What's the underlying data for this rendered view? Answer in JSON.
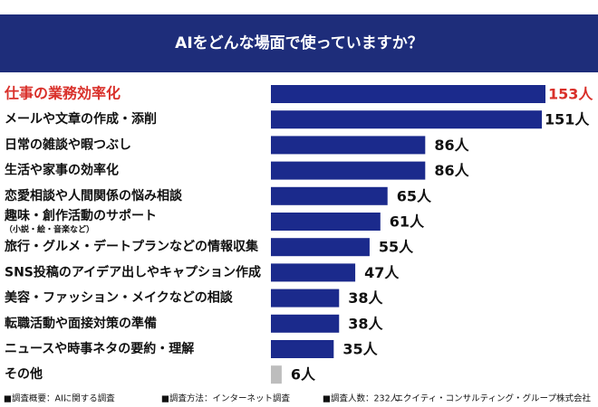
{
  "chart_data": {
    "type": "barh",
    "title": "AIをどんな場面で使っていますか？",
    "categories": [
      "仕事の業務効率化",
      "メールや文章の作成・添削",
      "日常の雑談や暇つぶし",
      "生活や家事の効率化",
      "恋愛相談や人間関係の悩み相談",
      "趣味・創作活動のサポート",
      "旅行・グルメ・デートプランなどの情報収集",
      "SNS投稿のアイデア出しやキャプション作成",
      "美容・ファッション・メイクなどの相談",
      "転職活動や面接対策の準備",
      "ニュースや時事ネタの要約・理解",
      "その他"
    ],
    "category_sublabels": [
      null,
      null,
      null,
      null,
      null,
      "（小説・絵・音楽など）",
      null,
      null,
      null,
      null,
      null,
      null
    ],
    "values": [
      153,
      151,
      86,
      86,
      65,
      61,
      55,
      47,
      38,
      38,
      35,
      6
    ],
    "value_labels": [
      "153人",
      "151人",
      "86人",
      "86人",
      "65人",
      "61人",
      "55人",
      "47人",
      "38人",
      "38人",
      "35人",
      "6人"
    ],
    "colors": [
      "#1b2a8c",
      "#1b2a8c",
      "#1b2a8c",
      "#1b2a8c",
      "#1b2a8c",
      "#1b2a8c",
      "#1b2a8c",
      "#1b2a8c",
      "#1b2a8c",
      "#1b2a8c",
      "#1b2a8c",
      "#bdbdbd"
    ],
    "category_colors": [
      "#d9302a",
      "#111111",
      "#111111",
      "#111111",
      "#111111",
      "#111111",
      "#111111",
      "#111111",
      "#111111",
      "#111111",
      "#111111",
      "#111111"
    ],
    "header_color": "#1e2d7a",
    "notes": [
      "■調査概要：AIに関する調査",
      "■調査方法：インターネット調査",
      "■調査人数：232人"
    ],
    "source": "エクイティ・コンサルティング・グループ株式会社"
  }
}
